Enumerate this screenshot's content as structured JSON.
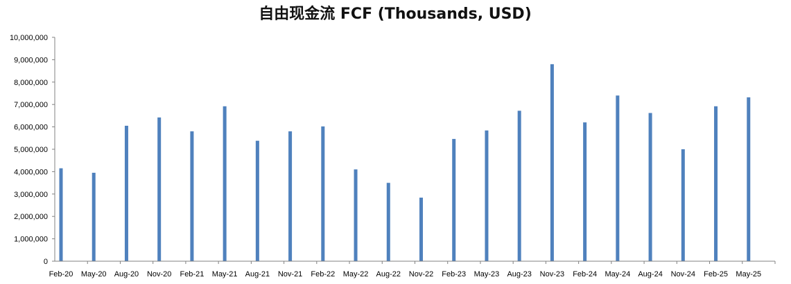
{
  "chart_data": {
    "type": "bar",
    "title": "自由现金流 FCF (Thousands, USD)",
    "xlabel": "",
    "ylabel": "",
    "ylim": [
      0,
      10000000
    ],
    "yticks": [
      "0",
      "1,000,000",
      "2,000,000",
      "3,000,000",
      "4,000,000",
      "5,000,000",
      "6,000,000",
      "7,000,000",
      "8,000,000",
      "9,000,000",
      "10,000,000"
    ],
    "ytick_values": [
      0,
      1000000,
      2000000,
      3000000,
      4000000,
      5000000,
      6000000,
      7000000,
      8000000,
      9000000,
      10000000
    ],
    "grid": false,
    "legend": "none",
    "bar_color": "#4F81BD",
    "categories": [
      "Feb-20",
      "May-20",
      "Aug-20",
      "Nov-20",
      "Feb-21",
      "May-21",
      "Aug-21",
      "Nov-21",
      "Feb-22",
      "May-22",
      "Aug-22",
      "Nov-22",
      "Feb-23",
      "May-23",
      "Aug-23",
      "Nov-23",
      "Feb-24",
      "May-24",
      "Aug-24",
      "Nov-24",
      "Feb-25",
      "May-25"
    ],
    "values": [
      4150000,
      3950000,
      6050000,
      6420000,
      5800000,
      6920000,
      5380000,
      5800000,
      6020000,
      4100000,
      3500000,
      2840000,
      5460000,
      5840000,
      6720000,
      8800000,
      6200000,
      7400000,
      6620000,
      5000000,
      6920000,
      7320000
    ]
  }
}
